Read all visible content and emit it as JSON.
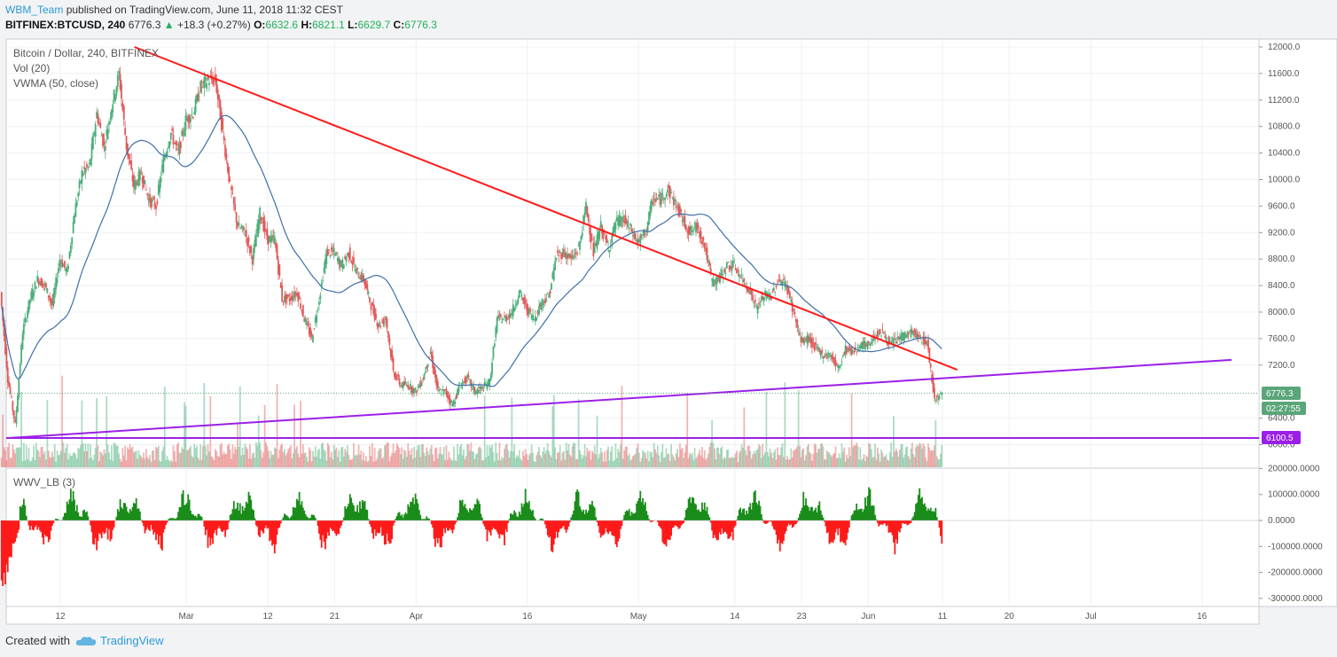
{
  "header": {
    "author": "WBM_Team",
    "published": "published on TradingView.com, June 11, 2018 11:32 CEST",
    "symbol": "BITFINEX:BTCUSD, 240",
    "last": "6776.3",
    "change": "+18.3 (+0.27%)",
    "o_label": "O:",
    "o": "6632.6",
    "h_label": "H:",
    "h": "6821.1",
    "l_label": "L:",
    "l": "6629.7",
    "c_label": "C:",
    "c": "6776.3"
  },
  "legend": {
    "line1": "Bitcoin / Dollar, 240, BITFINEX",
    "line2": "Vol (20)",
    "line3": "VWMA (50, close)",
    "indicator": "WWV_LB (3)"
  },
  "badges": {
    "price": "6776.3",
    "countdown": "02:27:55",
    "support": "6100.5"
  },
  "colors": {
    "up": "#4caf7a",
    "down": "#e05a5a",
    "vwma": "#3f6fa8",
    "resistance": "#ff1a1a",
    "support": "#9b1fe8",
    "osc_up": "#1a8c1a",
    "osc_down": "#ff1a1a",
    "price_badge": "#5aa57a",
    "support_badge": "#9b1fe8"
  },
  "footer": {
    "created_with": "Created with",
    "brand": "TradingView"
  },
  "chart_data": {
    "type": "line",
    "title": "Bitcoin / Dollar, 240, BITFINEX",
    "x_ticks": [
      "12",
      "Mar",
      "12",
      "21",
      "Apr",
      "16",
      "May",
      "14",
      "23",
      "Jun",
      "11",
      "20",
      "Jul",
      "16"
    ],
    "y_ticks": [
      "12000.0",
      "11600.0",
      "11200.0",
      "10800.0",
      "10400.0",
      "10000.0",
      "9600.0",
      "9200.0",
      "8800.0",
      "8400.0",
      "8000.0",
      "7600.0",
      "7200.0",
      "6400.0",
      "6000.0"
    ],
    "ylim": [
      5680,
      12060
    ],
    "osc_ticks": [
      "200000.0000",
      "100000.0000",
      "0.0000",
      "-100000.0000",
      "-200000.0000",
      "-300000.0000"
    ],
    "osc_ylim": [
      -300000,
      200000
    ],
    "price_path": [
      [
        "Feb 4",
        8300
      ],
      [
        "Feb 5",
        7000
      ],
      [
        "Feb 6",
        6300
      ],
      [
        "Feb 7",
        7700
      ],
      [
        "Feb 8",
        8200
      ],
      [
        "Feb 9",
        8500
      ],
      [
        "Feb 10",
        8400
      ],
      [
        "Feb 11",
        8100
      ],
      [
        "Feb 12",
        8800
      ],
      [
        "Feb 13",
        8600
      ],
      [
        "Feb 14",
        9500
      ],
      [
        "Feb 15",
        10100
      ],
      [
        "Feb 16",
        10200
      ],
      [
        "Feb 17",
        11000
      ],
      [
        "Feb 18",
        10500
      ],
      [
        "Feb 19",
        11100
      ],
      [
        "Feb 20",
        11600
      ],
      [
        "Feb 21",
        10500
      ],
      [
        "Feb 22",
        9900
      ],
      [
        "Feb 23",
        10100
      ],
      [
        "Feb 24",
        9700
      ],
      [
        "Feb 25",
        9600
      ],
      [
        "Feb 26",
        10300
      ],
      [
        "Feb 27",
        10700
      ],
      [
        "Feb 28",
        10400
      ],
      [
        "Mar 1",
        10900
      ],
      [
        "Mar 2",
        11000
      ],
      [
        "Mar 3",
        11400
      ],
      [
        "Mar 4",
        11500
      ],
      [
        "Mar 5",
        11500
      ],
      [
        "Mar 6",
        10700
      ],
      [
        "Mar 7",
        9900
      ],
      [
        "Mar 8",
        9300
      ],
      [
        "Mar 9",
        9200
      ],
      [
        "Mar 10",
        8800
      ],
      [
        "Mar 11",
        9500
      ],
      [
        "Mar 12",
        9100
      ],
      [
        "Mar 13",
        9100
      ],
      [
        "Mar 14",
        8200
      ],
      [
        "Mar 15",
        8200
      ],
      [
        "Mar 16",
        8300
      ],
      [
        "Mar 17",
        7900
      ],
      [
        "Mar 18",
        7600
      ],
      [
        "Mar 19",
        8200
      ],
      [
        "Mar 20",
        8900
      ],
      [
        "Mar 21",
        8900
      ],
      [
        "Mar 22",
        8700
      ],
      [
        "Mar 23",
        8900
      ],
      [
        "Mar 24",
        8600
      ],
      [
        "Mar 25",
        8500
      ],
      [
        "Mar 26",
        8100
      ],
      [
        "Mar 27",
        7800
      ],
      [
        "Mar 28",
        7900
      ],
      [
        "Mar 29",
        7100
      ],
      [
        "Mar 30",
        6900
      ],
      [
        "Mar 31",
        6900
      ],
      [
        "Apr 1",
        6800
      ],
      [
        "Apr 2",
        7000
      ],
      [
        "Apr 3",
        7400
      ],
      [
        "Apr 4",
        6800
      ],
      [
        "Apr 5",
        6800
      ],
      [
        "Apr 6",
        6600
      ],
      [
        "Apr 7",
        6900
      ],
      [
        "Apr 8",
        7000
      ],
      [
        "Apr 9",
        6800
      ],
      [
        "Apr 10",
        6850
      ],
      [
        "Apr 11",
        6950
      ],
      [
        "Apr 12",
        7900
      ],
      [
        "Apr 13",
        7900
      ],
      [
        "Apr 14",
        8000
      ],
      [
        "Apr 15",
        8300
      ],
      [
        "Apr 16",
        8050
      ],
      [
        "Apr 17",
        7900
      ],
      [
        "Apr 18",
        8150
      ],
      [
        "Apr 19",
        8250
      ],
      [
        "Apr 20",
        8850
      ],
      [
        "Apr 21",
        8900
      ],
      [
        "Apr 22",
        8800
      ],
      [
        "Apr 23",
        8950
      ],
      [
        "Apr 24",
        9600
      ],
      [
        "Apr 25",
        8900
      ],
      [
        "Apr 26",
        9300
      ],
      [
        "Apr 27",
        8950
      ],
      [
        "Apr 28",
        9350
      ],
      [
        "Apr 29",
        9400
      ],
      [
        "Apr 30",
        9250
      ],
      [
        "May 1",
        9050
      ],
      [
        "May 2",
        9200
      ],
      [
        "May 3",
        9700
      ],
      [
        "May 4",
        9700
      ],
      [
        "May 5",
        9850
      ],
      [
        "May 6",
        9650
      ],
      [
        "May 7",
        9400
      ],
      [
        "May 8",
        9200
      ],
      [
        "May 9",
        9300
      ],
      [
        "May 10",
        9000
      ],
      [
        "May 11",
        8450
      ],
      [
        "May 12",
        8500
      ],
      [
        "May 13",
        8700
      ],
      [
        "May 14",
        8700
      ],
      [
        "May 15",
        8500
      ],
      [
        "May 16",
        8350
      ],
      [
        "May 17",
        8050
      ],
      [
        "May 18",
        8250
      ],
      [
        "May 19",
        8250
      ],
      [
        "May 20",
        8500
      ],
      [
        "May 21",
        8400
      ],
      [
        "May 22",
        8000
      ],
      [
        "May 23",
        7550
      ],
      [
        "May 24",
        7600
      ],
      [
        "May 25",
        7450
      ],
      [
        "May 26",
        7350
      ],
      [
        "May 27",
        7350
      ],
      [
        "May 28",
        7150
      ],
      [
        "May 29",
        7450
      ],
      [
        "May 30",
        7400
      ],
      [
        "May 31",
        7500
      ],
      [
        "Jun 1",
        7500
      ],
      [
        "Jun 2",
        7650
      ],
      [
        "Jun 3",
        7700
      ],
      [
        "Jun 4",
        7500
      ],
      [
        "Jun 5",
        7600
      ],
      [
        "Jun 6",
        7650
      ],
      [
        "Jun 7",
        7700
      ],
      [
        "Jun 8",
        7600
      ],
      [
        "Jun 9",
        7550
      ],
      [
        "Jun 10",
        6700
      ],
      [
        "Jun 11",
        6776.3
      ]
    ],
    "resistance_line": [
      [
        "Feb 22",
        12000
      ],
      [
        "Jun 13",
        7130
      ]
    ],
    "support_line_rising": [
      [
        "Feb 5",
        6100
      ],
      [
        "Jul 20",
        7280
      ]
    ],
    "support_line_flat": 6100.5,
    "last_price": 6776.3
  }
}
